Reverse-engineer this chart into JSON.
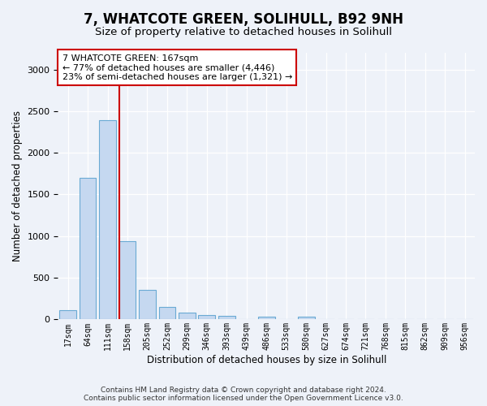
{
  "title": "7, WHATCOTE GREEN, SOLIHULL, B92 9NH",
  "subtitle": "Size of property relative to detached houses in Solihull",
  "xlabel": "Distribution of detached houses by size in Solihull",
  "ylabel": "Number of detached properties",
  "categories": [
    "17sqm",
    "64sqm",
    "111sqm",
    "158sqm",
    "205sqm",
    "252sqm",
    "299sqm",
    "346sqm",
    "393sqm",
    "439sqm",
    "486sqm",
    "533sqm",
    "580sqm",
    "627sqm",
    "674sqm",
    "721sqm",
    "768sqm",
    "815sqm",
    "862sqm",
    "909sqm",
    "956sqm"
  ],
  "values": [
    115,
    1700,
    2390,
    940,
    350,
    155,
    85,
    55,
    45,
    5,
    38,
    5,
    38,
    0,
    0,
    0,
    0,
    0,
    0,
    0,
    0
  ],
  "bar_color": "#c5d8f0",
  "bar_edge_color": "#6aaad4",
  "vline_x_index": 3,
  "vline_color": "#cc0000",
  "annotation_text": "7 WHATCOTE GREEN: 167sqm\n← 77% of detached houses are smaller (4,446)\n23% of semi-detached houses are larger (1,321) →",
  "annotation_box_facecolor": "#ffffff",
  "annotation_box_edgecolor": "#cc0000",
  "annotation_fontsize": 8,
  "ylim": [
    0,
    3200
  ],
  "yticks": [
    0,
    500,
    1000,
    1500,
    2000,
    2500,
    3000
  ],
  "title_fontsize": 12,
  "subtitle_fontsize": 9.5,
  "xlabel_fontsize": 8.5,
  "ylabel_fontsize": 8.5,
  "tick_labelsize": 8,
  "footer_text": "Contains HM Land Registry data © Crown copyright and database right 2024.\nContains public sector information licensed under the Open Government Licence v3.0.",
  "footer_fontsize": 6.5,
  "bg_color": "#eef2f9",
  "plot_bg_color": "#eef2f9",
  "grid_color": "#ffffff"
}
